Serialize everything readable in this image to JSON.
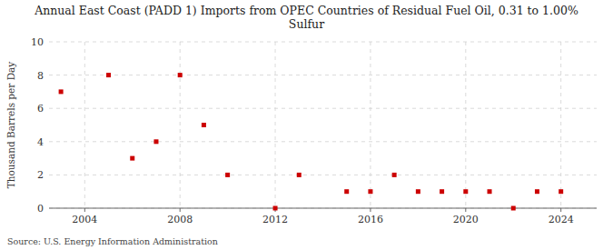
{
  "chart_data": {
    "type": "scatter",
    "title": "Annual East Coast (PADD 1) Imports from OPEC Countries of Residual Fuel Oil, 0.31 to 1.00%\nSulfur",
    "y_label": "Thousand Barrels per Day",
    "annotations": [
      "Source: U.S. Energy Information Administration"
    ],
    "x": [
      2003,
      2005,
      2006,
      2007,
      2008,
      2009,
      2010,
      2012,
      2013,
      2015,
      2016,
      2017,
      2018,
      2019,
      2020,
      2021,
      2022,
      2023,
      2024
    ],
    "values": [
      7,
      8,
      3,
      4,
      8,
      5,
      2,
      0,
      2,
      1,
      1,
      2,
      1,
      1,
      1,
      1,
      0,
      1,
      1
    ],
    "color": "#cc0000",
    "marker": "square",
    "xlim": [
      2002.5,
      2025.5
    ],
    "ylim": [
      0,
      10
    ],
    "xticks": [
      2004,
      2008,
      2012,
      2016,
      2020,
      2024
    ],
    "yticks": [
      0,
      2,
      4,
      6,
      8,
      10
    ],
    "grid": true
  }
}
